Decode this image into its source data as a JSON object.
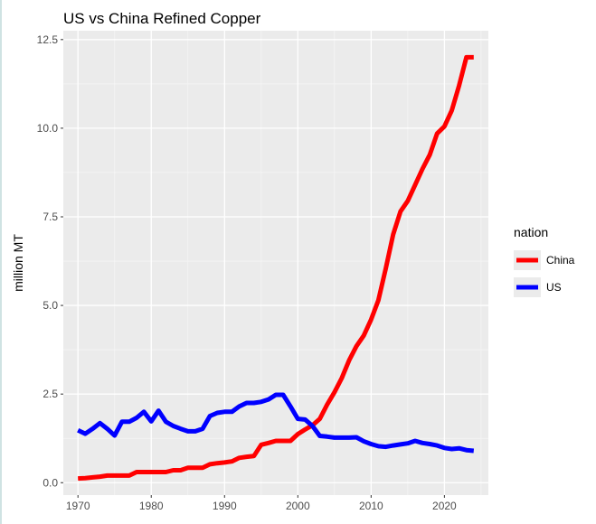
{
  "chart_data": {
    "type": "line",
    "title": "US vs China Refined Copper",
    "xlabel": "",
    "ylabel": "million MT",
    "xlim": [
      1968,
      2026
    ],
    "ylim": [
      -0.35,
      12.75
    ],
    "x_ticks": [
      1970,
      1980,
      1990,
      2000,
      2010,
      2020
    ],
    "x_tick_labels": [
      "1970",
      "1980",
      "1990",
      "2000",
      "2010",
      "2020"
    ],
    "y_ticks": [
      0,
      2.5,
      5,
      7.5,
      10,
      12.5
    ],
    "y_tick_labels": [
      "0.0",
      "2.5",
      "5.0",
      "7.5",
      "10.0",
      "12.5"
    ],
    "grid": true,
    "legend": {
      "title": "nation",
      "position": "right"
    },
    "x": [
      1970,
      1971,
      1972,
      1973,
      1974,
      1975,
      1976,
      1977,
      1978,
      1979,
      1980,
      1981,
      1982,
      1983,
      1984,
      1985,
      1986,
      1987,
      1988,
      1989,
      1990,
      1991,
      1992,
      1993,
      1994,
      1995,
      1996,
      1997,
      1998,
      1999,
      2000,
      2001,
      2002,
      2003,
      2004,
      2005,
      2006,
      2007,
      2008,
      2009,
      2010,
      2011,
      2012,
      2013,
      2014,
      2015,
      2016,
      2017,
      2018,
      2019,
      2020,
      2021,
      2022,
      2023,
      2024
    ],
    "series": [
      {
        "name": "China",
        "color": "#ff0000",
        "values": [
          0.12,
          0.13,
          0.15,
          0.17,
          0.2,
          0.2,
          0.2,
          0.2,
          0.3,
          0.3,
          0.3,
          0.3,
          0.3,
          0.35,
          0.35,
          0.42,
          0.42,
          0.42,
          0.52,
          0.55,
          0.57,
          0.6,
          0.7,
          0.73,
          0.75,
          1.07,
          1.12,
          1.18,
          1.18,
          1.18,
          1.37,
          1.5,
          1.62,
          1.8,
          2.2,
          2.55,
          2.95,
          3.45,
          3.85,
          4.15,
          4.6,
          5.15,
          6.05,
          7.0,
          7.65,
          7.95,
          8.4,
          8.85,
          9.25,
          9.85,
          10.05,
          10.5,
          11.2,
          12.0,
          12.0
        ]
      },
      {
        "name": "US",
        "color": "#0000ff",
        "values": [
          1.48,
          1.38,
          1.52,
          1.68,
          1.52,
          1.33,
          1.72,
          1.72,
          1.83,
          2.0,
          1.73,
          2.03,
          1.72,
          1.6,
          1.52,
          1.45,
          1.45,
          1.52,
          1.88,
          1.97,
          2.0,
          2.0,
          2.15,
          2.25,
          2.25,
          2.28,
          2.35,
          2.48,
          2.48,
          2.15,
          1.8,
          1.78,
          1.6,
          1.32,
          1.3,
          1.27,
          1.27,
          1.27,
          1.28,
          1.17,
          1.09,
          1.03,
          1.01,
          1.05,
          1.08,
          1.11,
          1.18,
          1.12,
          1.09,
          1.05,
          0.98,
          0.95,
          0.97,
          0.92,
          0.9
        ]
      }
    ]
  }
}
